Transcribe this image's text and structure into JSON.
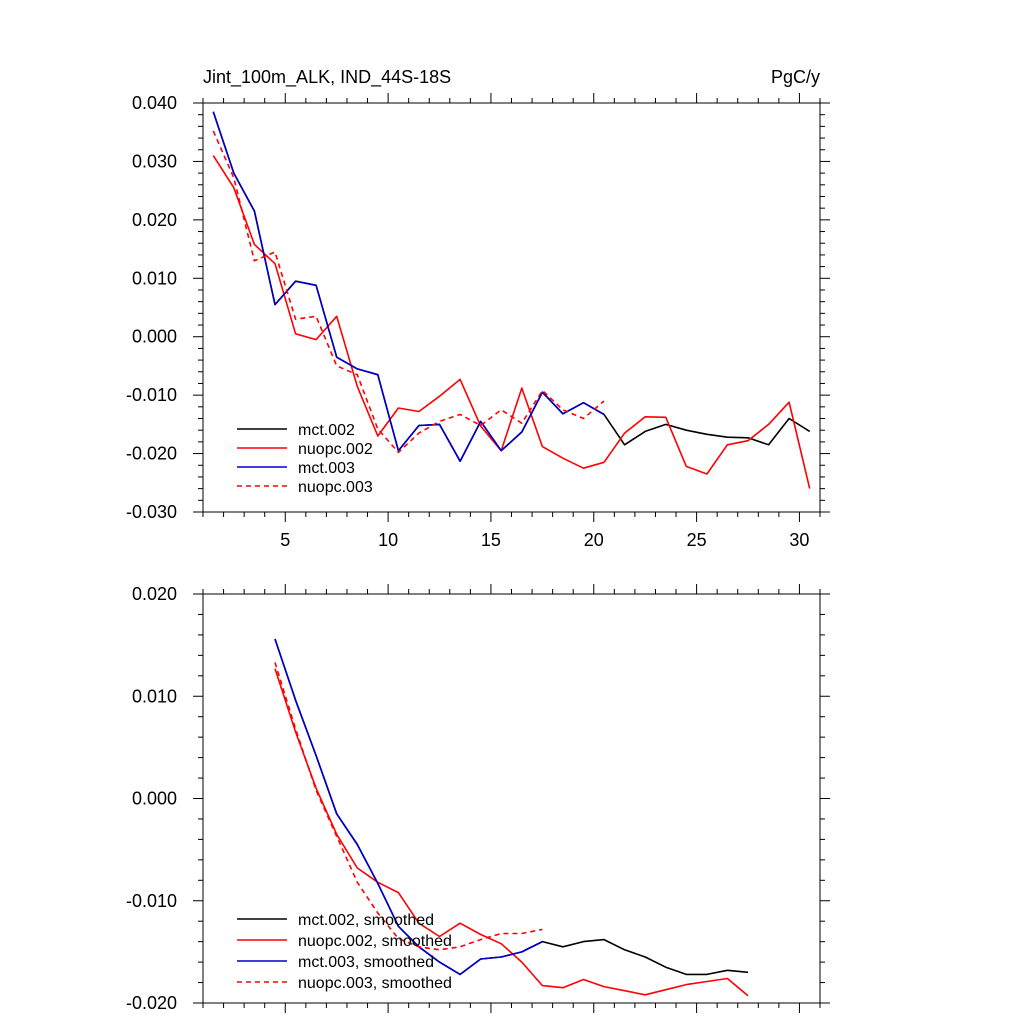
{
  "chart_data": [
    {
      "type": "line",
      "title_left": "Jint_100m_ALK, IND_44S-18S",
      "title_right": "PgC/y",
      "xlabel": "",
      "ylabel": "",
      "xlim": [
        1,
        31
      ],
      "ylim": [
        -0.03,
        0.04
      ],
      "xticks": [
        5,
        10,
        15,
        20,
        25,
        30
      ],
      "xtick_labels": [
        "5",
        "10",
        "15",
        "20",
        "25",
        "30"
      ],
      "yticks": [
        0.04,
        0.03,
        0.02,
        0.01,
        0.0,
        -0.01,
        -0.02,
        -0.03
      ],
      "ytick_labels": [
        "0.040",
        "0.030",
        "0.020",
        "0.010",
        "0.000",
        "-0.010",
        "-0.020",
        "-0.030"
      ],
      "legend_position": "bottom-left",
      "series": [
        {
          "name": "mct.002",
          "color": "#000000",
          "dash": "solid",
          "x": [
            1.5,
            2.5,
            3.5,
            4.5,
            5.5,
            6.5,
            7.5,
            8.5,
            9.5,
            10.5,
            11.5,
            12.5,
            13.5,
            14.5,
            15.5,
            16.5,
            17.5,
            18.5,
            19.5,
            20.5,
            21.5,
            22.5,
            23.5,
            24.5,
            25.5,
            26.5,
            27.5,
            28.5,
            29.5,
            30.5
          ],
          "values": [
            0.0385,
            0.028,
            0.0215,
            0.0055,
            0.0095,
            0.0088,
            -0.0035,
            -0.0055,
            -0.0065,
            -0.0195,
            -0.0152,
            -0.015,
            -0.0213,
            -0.0145,
            -0.0195,
            -0.0163,
            -0.0095,
            -0.0132,
            -0.0113,
            -0.0133,
            -0.0185,
            -0.0162,
            -0.015,
            -0.016,
            -0.0167,
            -0.0172,
            -0.0173,
            -0.0185,
            -0.014,
            -0.0162
          ]
        },
        {
          "name": "nuopc.002",
          "color": "#ff0000",
          "dash": "solid",
          "x": [
            1.5,
            2.5,
            3.5,
            4.5,
            5.5,
            6.5,
            7.5,
            8.5,
            9.5,
            10.5,
            11.5,
            12.5,
            13.5,
            14.5,
            15.5,
            16.5,
            17.5,
            18.5,
            19.5,
            20.5,
            21.5,
            22.5,
            23.5,
            24.5,
            25.5,
            26.5,
            27.5,
            28.5,
            29.5,
            30.5
          ],
          "values": [
            0.031,
            0.0255,
            0.0158,
            0.0125,
            0.0005,
            -0.0005,
            0.0035,
            -0.0085,
            -0.017,
            -0.0122,
            -0.0128,
            -0.0102,
            -0.0073,
            -0.0153,
            -0.0195,
            -0.0088,
            -0.0188,
            -0.0208,
            -0.0225,
            -0.0215,
            -0.0165,
            -0.0137,
            -0.0138,
            -0.0222,
            -0.0235,
            -0.0185,
            -0.0178,
            -0.015,
            -0.0112,
            -0.026
          ]
        },
        {
          "name": "mct.003",
          "color": "#0000cc",
          "dash": "solid",
          "x": [
            1.5,
            2.5,
            3.5,
            4.5,
            5.5,
            6.5,
            7.5,
            8.5,
            9.5,
            10.5,
            11.5,
            12.5,
            13.5,
            14.5,
            15.5,
            16.5,
            17.5,
            18.5,
            19.5,
            20.5
          ],
          "values": [
            0.0385,
            0.028,
            0.0215,
            0.0055,
            0.0095,
            0.0088,
            -0.0035,
            -0.0055,
            -0.0065,
            -0.0195,
            -0.0152,
            -0.015,
            -0.0213,
            -0.0145,
            -0.0195,
            -0.0163,
            -0.0095,
            -0.0132,
            -0.0113,
            -0.0133
          ]
        },
        {
          "name": "nuopc.003",
          "color": "#ff0000",
          "dash": "dashed",
          "x": [
            1.5,
            2.5,
            3.5,
            4.5,
            5.5,
            6.5,
            7.5,
            8.5,
            9.5,
            10.5,
            11.5,
            12.5,
            13.5,
            14.5,
            15.5,
            16.5,
            17.5,
            18.5,
            19.5,
            20.5
          ],
          "values": [
            0.0352,
            0.0272,
            0.013,
            0.0145,
            0.003,
            0.0035,
            -0.005,
            -0.0065,
            -0.0158,
            -0.0198,
            -0.0165,
            -0.0145,
            -0.0133,
            -0.0152,
            -0.0125,
            -0.0148,
            -0.0092,
            -0.0125,
            -0.014,
            -0.011
          ]
        }
      ]
    },
    {
      "type": "line",
      "title_left": "",
      "title_right": "",
      "xlabel": "",
      "ylabel": "",
      "xlim": [
        1,
        31
      ],
      "ylim": [
        -0.02,
        0.02
      ],
      "xticks": [
        5,
        10,
        15,
        20,
        25,
        30
      ],
      "xtick_labels": [],
      "yticks": [
        0.02,
        0.01,
        0.0,
        -0.01,
        -0.02
      ],
      "ytick_labels": [
        "0.020",
        "0.010",
        "0.000",
        "-0.010",
        "-0.020"
      ],
      "legend_position": "bottom-left",
      "series": [
        {
          "name": "mct.002, smoothed",
          "color": "#000000",
          "dash": "solid",
          "x": [
            4.5,
            5.5,
            6.5,
            7.5,
            8.5,
            9.5,
            10.5,
            11.5,
            12.5,
            13.5,
            14.5,
            15.5,
            16.5,
            17.5,
            18.5,
            19.5,
            20.5,
            21.5,
            22.5,
            23.5,
            24.5,
            25.5,
            26.5,
            27.5
          ],
          "values": [
            0.0156,
            0.0096,
            0.0042,
            -0.0015,
            -0.0045,
            -0.0083,
            -0.0125,
            -0.0145,
            -0.016,
            -0.0172,
            -0.0157,
            -0.0155,
            -0.015,
            -0.014,
            -0.0145,
            -0.014,
            -0.0138,
            -0.0148,
            -0.0155,
            -0.0165,
            -0.0172,
            -0.0172,
            -0.0168,
            -0.017
          ]
        },
        {
          "name": "nuopc.002, smoothed",
          "color": "#ff0000",
          "dash": "solid",
          "x": [
            4.5,
            5.5,
            6.5,
            7.5,
            8.5,
            9.5,
            10.5,
            11.5,
            12.5,
            13.5,
            14.5,
            15.5,
            16.5,
            17.5,
            18.5,
            19.5,
            20.5,
            21.5,
            22.5,
            23.5,
            24.5,
            25.5,
            26.5,
            27.5
          ],
          "values": [
            0.0127,
            0.0065,
            0.001,
            -0.0035,
            -0.0068,
            -0.0082,
            -0.0092,
            -0.0122,
            -0.0135,
            -0.0122,
            -0.0133,
            -0.0142,
            -0.016,
            -0.0183,
            -0.0185,
            -0.0177,
            -0.0184,
            -0.0188,
            -0.0192,
            -0.0187,
            -0.0182,
            -0.0179,
            -0.0176,
            -0.0193
          ]
        },
        {
          "name": "mct.003, smoothed",
          "color": "#0000cc",
          "dash": "solid",
          "x": [
            4.5,
            5.5,
            6.5,
            7.5,
            8.5,
            9.5,
            10.5,
            11.5,
            12.5,
            13.5,
            14.5,
            15.5,
            16.5,
            17.5
          ],
          "values": [
            0.0156,
            0.0096,
            0.0042,
            -0.0015,
            -0.0045,
            -0.0083,
            -0.0125,
            -0.0145,
            -0.016,
            -0.0172,
            -0.0157,
            -0.0155,
            -0.015,
            -0.014
          ]
        },
        {
          "name": "nuopc.003, smoothed",
          "color": "#ff0000",
          "dash": "dashed",
          "x": [
            4.5,
            5.5,
            6.5,
            7.5,
            8.5,
            9.5,
            10.5,
            11.5,
            12.5,
            13.5,
            14.5,
            15.5,
            16.5,
            17.5
          ],
          "values": [
            0.0133,
            0.0068,
            0.0008,
            -0.0037,
            -0.0082,
            -0.0112,
            -0.0137,
            -0.0145,
            -0.0148,
            -0.0145,
            -0.0138,
            -0.0132,
            -0.0132,
            -0.0128
          ]
        }
      ]
    }
  ]
}
